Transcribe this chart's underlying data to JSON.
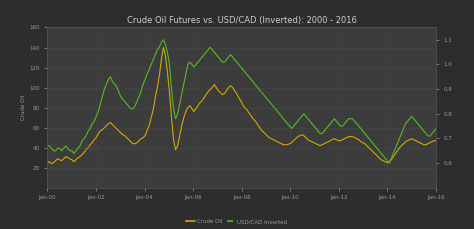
{
  "title": "Crude Oil Futures vs. USD/CAD (Inverted): 2000 - 2016",
  "background_color": "#2d2d2d",
  "plot_background_color": "#3c3c3c",
  "grid_color": "#505050",
  "title_color": "#cccccc",
  "tick_color": "#999999",
  "crude_oil_color": "#d4a800",
  "usdcad_color": "#55bb22",
  "x_labels": [
    "Jan-00",
    "Jan-02",
    "Jan-04",
    "Jan-06",
    "Jan-08",
    "Jan-10",
    "Jan-12",
    "Jan-14",
    "Jan-16"
  ],
  "legend_crude": "Crude Oil",
  "legend_usdcad": "USD/CAD Inverted",
  "crude_oil_data": [
    25,
    26,
    24,
    25,
    27,
    29,
    28,
    27,
    29,
    31,
    30,
    29,
    28,
    26,
    28,
    30,
    31,
    33,
    35,
    38,
    40,
    43,
    45,
    48,
    50,
    54,
    57,
    58,
    60,
    62,
    64,
    65,
    63,
    61,
    59,
    57,
    55,
    53,
    52,
    50,
    48,
    46,
    44,
    44,
    45,
    47,
    49,
    50,
    52,
    57,
    62,
    70,
    78,
    90,
    100,
    112,
    128,
    140,
    132,
    115,
    95,
    70,
    48,
    38,
    42,
    52,
    62,
    70,
    76,
    80,
    82,
    79,
    76,
    79,
    82,
    85,
    87,
    90,
    93,
    96,
    98,
    100,
    103,
    100,
    97,
    95,
    93,
    94,
    97,
    100,
    102,
    100,
    97,
    94,
    90,
    87,
    83,
    80,
    78,
    75,
    72,
    69,
    67,
    64,
    61,
    58,
    56,
    54,
    52,
    50,
    49,
    48,
    47,
    46,
    45,
    44,
    43,
    43,
    43,
    44,
    45,
    47,
    49,
    51,
    52,
    53,
    52,
    50,
    48,
    47,
    46,
    45,
    44,
    43,
    42,
    43,
    44,
    45,
    46,
    47,
    48,
    49,
    48,
    47,
    47,
    48,
    49,
    50,
    51,
    51,
    51,
    50,
    49,
    48,
    46,
    45,
    44,
    42,
    40,
    38,
    36,
    34,
    32,
    30,
    28,
    27,
    26,
    25,
    26,
    28,
    31,
    34,
    37,
    40,
    42,
    44,
    46,
    47,
    48,
    49,
    48,
    47,
    46,
    45,
    44,
    43,
    43,
    44,
    45,
    46,
    47,
    47
  ],
  "usdcad_inv_data": [
    0.67,
    0.67,
    0.66,
    0.65,
    0.65,
    0.66,
    0.66,
    0.65,
    0.66,
    0.67,
    0.66,
    0.65,
    0.65,
    0.64,
    0.65,
    0.66,
    0.67,
    0.69,
    0.7,
    0.71,
    0.73,
    0.74,
    0.76,
    0.77,
    0.79,
    0.81,
    0.84,
    0.87,
    0.9,
    0.92,
    0.94,
    0.95,
    0.93,
    0.92,
    0.91,
    0.89,
    0.87,
    0.86,
    0.85,
    0.84,
    0.83,
    0.82,
    0.82,
    0.83,
    0.85,
    0.87,
    0.89,
    0.92,
    0.94,
    0.96,
    0.98,
    1.0,
    1.02,
    1.04,
    1.06,
    1.07,
    1.09,
    1.1,
    1.08,
    1.05,
    1.0,
    0.9,
    0.82,
    0.78,
    0.8,
    0.84,
    0.88,
    0.92,
    0.96,
    1.0,
    1.01,
    1.0,
    0.99,
    1.0,
    1.01,
    1.02,
    1.03,
    1.04,
    1.05,
    1.06,
    1.07,
    1.06,
    1.05,
    1.04,
    1.03,
    1.02,
    1.01,
    1.01,
    1.02,
    1.03,
    1.04,
    1.03,
    1.02,
    1.01,
    1.0,
    0.99,
    0.98,
    0.97,
    0.96,
    0.95,
    0.94,
    0.93,
    0.92,
    0.91,
    0.9,
    0.89,
    0.88,
    0.87,
    0.86,
    0.85,
    0.84,
    0.83,
    0.82,
    0.81,
    0.8,
    0.79,
    0.78,
    0.77,
    0.76,
    0.75,
    0.74,
    0.75,
    0.76,
    0.77,
    0.78,
    0.79,
    0.8,
    0.79,
    0.78,
    0.77,
    0.76,
    0.75,
    0.74,
    0.73,
    0.72,
    0.72,
    0.73,
    0.74,
    0.75,
    0.76,
    0.77,
    0.78,
    0.77,
    0.76,
    0.75,
    0.75,
    0.76,
    0.77,
    0.78,
    0.78,
    0.78,
    0.77,
    0.76,
    0.75,
    0.74,
    0.73,
    0.72,
    0.71,
    0.7,
    0.69,
    0.68,
    0.67,
    0.66,
    0.65,
    0.64,
    0.63,
    0.62,
    0.61,
    0.6,
    0.62,
    0.64,
    0.66,
    0.68,
    0.7,
    0.72,
    0.74,
    0.76,
    0.77,
    0.78,
    0.79,
    0.78,
    0.77,
    0.76,
    0.75,
    0.74,
    0.73,
    0.72,
    0.71,
    0.71,
    0.72,
    0.73,
    0.74
  ],
  "ylim_left": [
    0,
    160
  ],
  "ylim_right": [
    0.5,
    1.15
  ],
  "yticks_left": [
    20,
    40,
    60,
    80,
    100,
    120,
    140,
    160
  ],
  "yticks_right": [
    0.6,
    0.7,
    0.8,
    0.9,
    1.0,
    1.1
  ],
  "xlim": [
    0,
    16
  ]
}
